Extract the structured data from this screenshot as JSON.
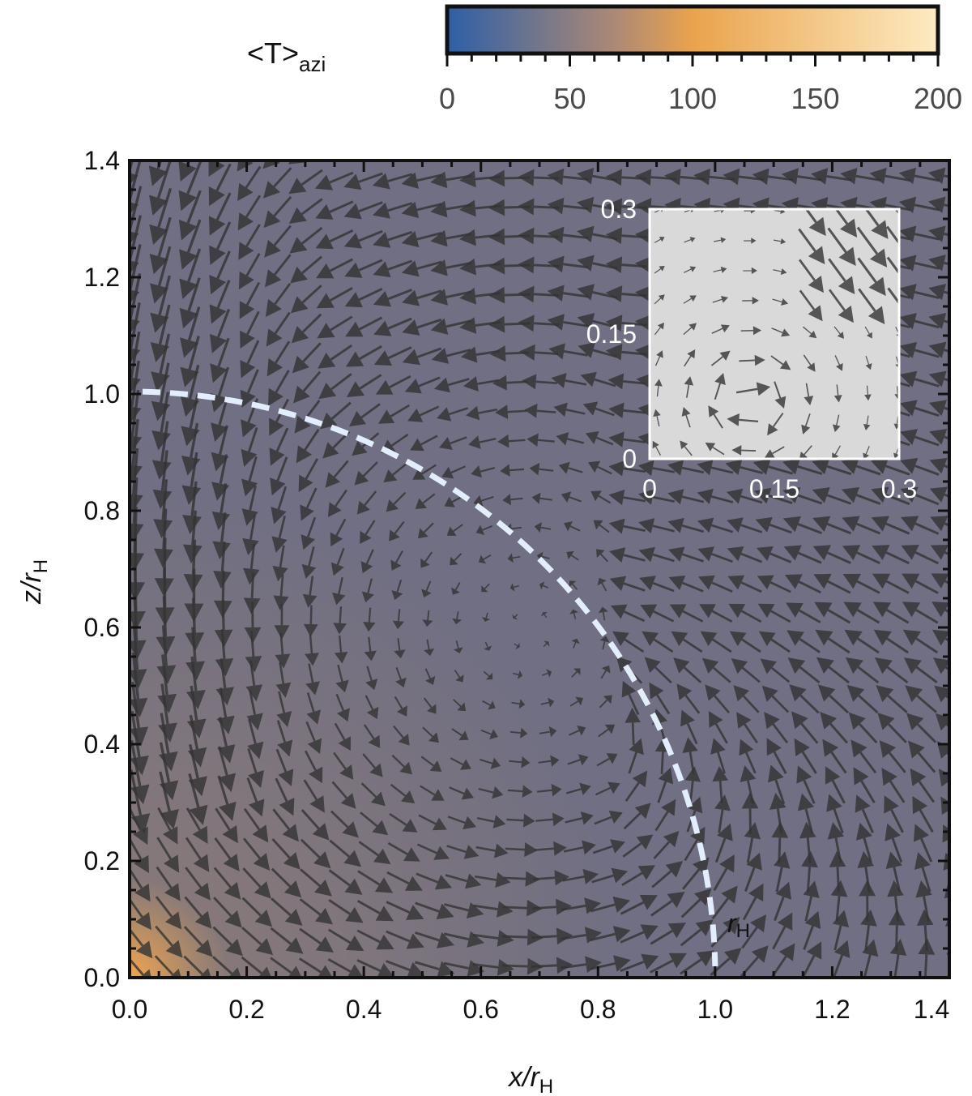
{
  "chart_data": {
    "type": "vector-field-heatmap",
    "colorbar": {
      "label_main": "<T>",
      "label_sub": "azi",
      "range": [
        0,
        200
      ],
      "ticks": [
        "0",
        "50",
        "100",
        "150",
        "200"
      ],
      "colors": [
        "#2e5fa6",
        "#b08a74",
        "#e9a34d",
        "#fdebc2"
      ]
    },
    "x_axis": {
      "label_var": "x/r",
      "label_sub": "H",
      "range": [
        0,
        1.4
      ],
      "ticks": [
        "0.0",
        "0.2",
        "0.4",
        "0.6",
        "0.8",
        "1.0",
        "1.2",
        "1.4"
      ]
    },
    "y_axis": {
      "label_var": "z/r",
      "label_sub": "H",
      "range": [
        0,
        1.4
      ],
      "ticks": [
        "0.0",
        "0.2",
        "0.4",
        "0.6",
        "0.8",
        "1.0",
        "1.2",
        "1.4"
      ]
    },
    "background": {
      "base_color": "#706f83",
      "hot_spot": {
        "x": 0.03,
        "y": 0.03,
        "color": "#f0a64e"
      },
      "warm_region_color": "#8a7a78"
    },
    "flow": {
      "description_values": "azimuthally averaged velocity field (arrows)",
      "vortex_center": {
        "x": 0.68,
        "y": 0.6
      },
      "arrow_color": "#333333"
    },
    "hill_sphere": {
      "radius": 1.0,
      "label_main": "r",
      "label_sub": "H",
      "color": "#e3eefc"
    },
    "inset": {
      "range": [
        0,
        0.3
      ],
      "x_ticks": [
        "0",
        "0.15",
        "0.3"
      ],
      "y_ticks": [
        "0",
        "0.15",
        "0.3"
      ],
      "background": "#d9d9d9",
      "vortex_center": {
        "x": 0.12,
        "y": 0.07
      }
    }
  }
}
